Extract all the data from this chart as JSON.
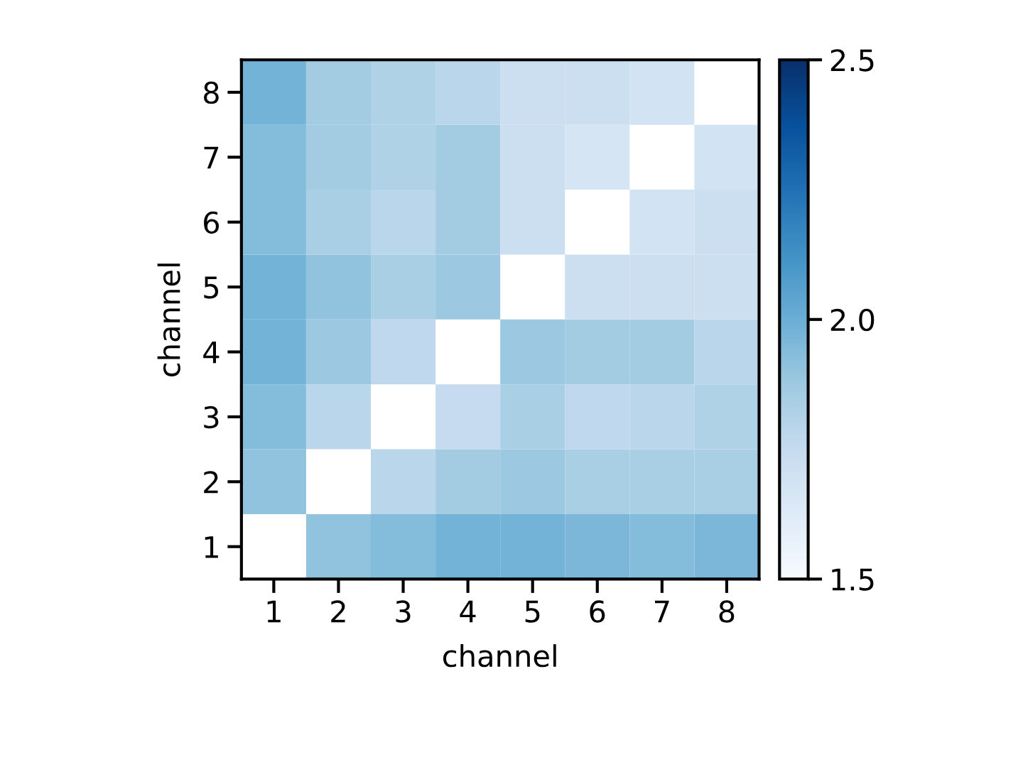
{
  "chart_data": {
    "type": "heatmap",
    "xlabel": "channel",
    "ylabel": "channel",
    "categories": [
      "1",
      "2",
      "3",
      "4",
      "5",
      "6",
      "7",
      "8"
    ],
    "y_categories": [
      "8",
      "7",
      "6",
      "5",
      "4",
      "3",
      "2",
      "1"
    ],
    "cells": [
      [
        1.98,
        1.86,
        1.82,
        1.79,
        1.72,
        1.72,
        1.69,
        null
      ],
      [
        1.94,
        1.86,
        1.82,
        1.86,
        1.72,
        1.67,
        null,
        1.69
      ],
      [
        1.94,
        1.84,
        1.79,
        1.86,
        1.72,
        null,
        1.69,
        1.72
      ],
      [
        1.98,
        1.91,
        1.84,
        1.88,
        null,
        1.72,
        1.72,
        1.72
      ],
      [
        1.98,
        1.88,
        1.77,
        null,
        1.88,
        1.86,
        1.86,
        1.79
      ],
      [
        1.94,
        1.79,
        null,
        1.75,
        1.84,
        1.77,
        1.79,
        1.82
      ],
      [
        1.91,
        null,
        1.79,
        1.86,
        1.88,
        1.84,
        1.84,
        1.84
      ],
      [
        null,
        1.91,
        1.94,
        1.98,
        1.98,
        1.96,
        1.94,
        1.96
      ]
    ],
    "clim": [
      1.5,
      2.5
    ],
    "cticks": [
      1.5,
      {
        "value": 2,
        "label": "2.0"
      },
      2.5
    ]
  }
}
